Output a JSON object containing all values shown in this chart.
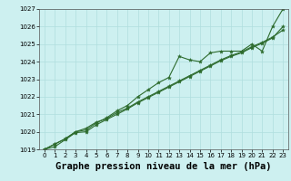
{
  "title": "Graphe pression niveau de la mer (hPa)",
  "bg_color": "#cdf0f0",
  "grid_color": "#b0dede",
  "line_color": "#2d6b2d",
  "xlim": [
    -0.5,
    23.5
  ],
  "ylim": [
    1019,
    1027
  ],
  "yticks": [
    1019,
    1020,
    1021,
    1022,
    1023,
    1024,
    1025,
    1026,
    1027
  ],
  "xticks": [
    0,
    1,
    2,
    3,
    4,
    5,
    6,
    7,
    8,
    9,
    10,
    11,
    12,
    13,
    14,
    15,
    16,
    17,
    18,
    19,
    20,
    21,
    22,
    23
  ],
  "series1": [
    1019.0,
    1019.3,
    1019.6,
    1020.0,
    1020.1,
    1020.5,
    1020.8,
    1021.2,
    1021.5,
    1022.0,
    1022.4,
    1022.8,
    1023.1,
    1024.3,
    1024.1,
    1024.0,
    1024.5,
    1024.6,
    1024.6,
    1024.6,
    1025.0,
    1024.6,
    1026.0,
    1027.0
  ],
  "series2": [
    1019.0,
    1019.3,
    1019.6,
    1020.0,
    1020.2,
    1020.55,
    1020.75,
    1021.1,
    1021.35,
    1021.7,
    1022.0,
    1022.3,
    1022.6,
    1022.9,
    1023.2,
    1023.5,
    1023.8,
    1024.1,
    1024.35,
    1024.55,
    1024.85,
    1025.1,
    1025.4,
    1025.8
  ],
  "series3": [
    1019.0,
    1019.15,
    1019.55,
    1019.95,
    1020.0,
    1020.4,
    1020.7,
    1021.0,
    1021.3,
    1021.65,
    1021.95,
    1022.25,
    1022.55,
    1022.85,
    1023.15,
    1023.45,
    1023.75,
    1024.05,
    1024.3,
    1024.5,
    1024.8,
    1025.05,
    1025.35,
    1026.0
  ],
  "marker": "*",
  "marker_size": 3.0,
  "linewidth": 0.8,
  "title_fontsize": 7.5,
  "tick_fontsize": 5.0
}
